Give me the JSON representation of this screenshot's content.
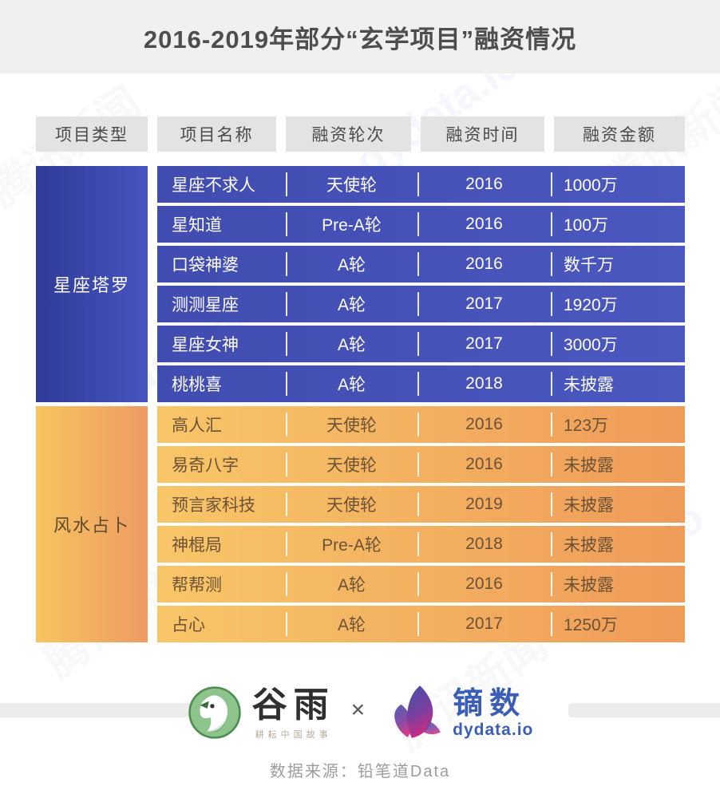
{
  "chart_data": {
    "type": "table",
    "title": "2016-2019年部分“玄学项目”融资情况",
    "columns": [
      "项目类型",
      "项目名称",
      "融资轮次",
      "融资时间",
      "融资金额"
    ],
    "groups": [
      {
        "category": "星座塔罗",
        "theme": "blue",
        "accent_color": "#4450b8",
        "rows": [
          [
            "星座不求人",
            "天使轮",
            "2016",
            "1000万"
          ],
          [
            "星知道",
            "Pre-A轮",
            "2016",
            "100万"
          ],
          [
            "口袋神婆",
            "A轮",
            "2016",
            "数千万"
          ],
          [
            "测测星座",
            "A轮",
            "2017",
            "1920万"
          ],
          [
            "星座女神",
            "A轮",
            "2017",
            "3000万"
          ],
          [
            "桃桃喜",
            "A轮",
            "2018",
            "未披露"
          ]
        ]
      },
      {
        "category": "风水占卜",
        "theme": "orange",
        "accent_color": "#f2a95e",
        "rows": [
          [
            "高人汇",
            "天使轮",
            "2016",
            "123万"
          ],
          [
            "易奇八字",
            "天使轮",
            "2016",
            "未披露"
          ],
          [
            "预言家科技",
            "天使轮",
            "2019",
            "未披露"
          ],
          [
            "神棍局",
            "Pre-A轮",
            "2018",
            "未披露"
          ],
          [
            "帮帮测",
            "A轮",
            "2016",
            "未披露"
          ],
          [
            "占心",
            "A轮",
            "2017",
            "1250万"
          ]
        ]
      }
    ]
  },
  "footer": {
    "guyu_name": "谷雨",
    "guyu_slogan": "耕耘中国故事",
    "cross": "×",
    "dydata_name": "镝数",
    "dydata_domain": "dydata.io",
    "source": "数据来源：铅笔道Data"
  },
  "watermarks": [
    "腾讯新闻",
    "dydata.io"
  ],
  "colors": {
    "title_band_bg": "#f0f0f0",
    "header_cell_bg": "#e3e3e3",
    "blue_section": "#4450b8",
    "orange_section": "#f2a95e",
    "dydata_blue": "#3a5db5",
    "guyu_green": "#8cc48b"
  }
}
